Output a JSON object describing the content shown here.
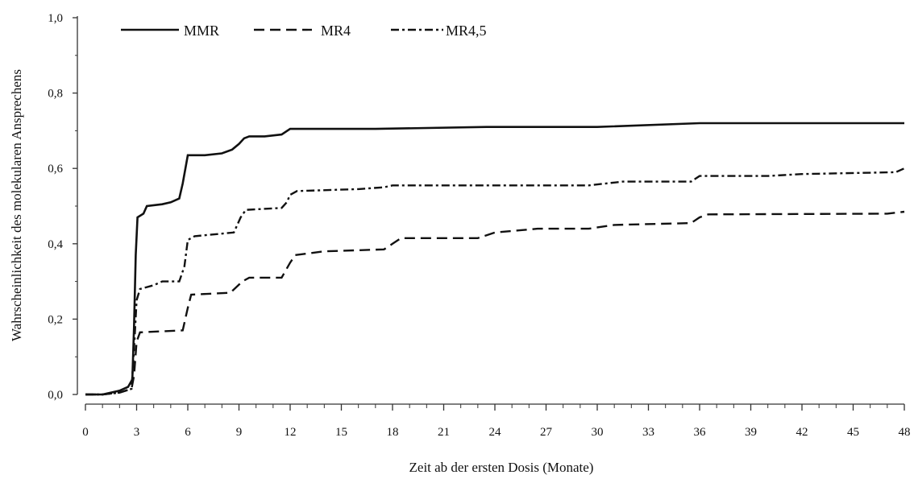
{
  "chart_data": {
    "type": "line",
    "xlabel": "Zeit ab der ersten Dosis (Monate)",
    "ylabel": "Wahrscheinlichkeit  des molekularen Ansprechens",
    "xlim": [
      0,
      48
    ],
    "ylim": [
      0,
      1.0
    ],
    "x_ticks": [
      0,
      3,
      6,
      9,
      12,
      15,
      18,
      21,
      24,
      27,
      30,
      33,
      36,
      39,
      42,
      45,
      48
    ],
    "x_tick_labels": [
      "0",
      "3",
      "6",
      "9",
      "12",
      "15",
      "18",
      "21",
      "24",
      "27",
      "30",
      "33",
      "36",
      "39",
      "42",
      "45",
      "48"
    ],
    "y_ticks": [
      0,
      0.2,
      0.4,
      0.6,
      0.8,
      1.0
    ],
    "y_tick_labels": [
      "0,0",
      "0,2",
      "0,4",
      "0,6",
      "0,8",
      "1,0"
    ],
    "grid": false,
    "legend_position": "top-left",
    "series": [
      {
        "name": "MMR",
        "style": "solid",
        "color": "#111111",
        "points": [
          [
            0,
            0
          ],
          [
            1,
            0
          ],
          [
            1.5,
            0.005
          ],
          [
            2.0,
            0.01
          ],
          [
            2.5,
            0.02
          ],
          [
            2.75,
            0.04
          ],
          [
            2.85,
            0.18
          ],
          [
            2.95,
            0.37
          ],
          [
            3.05,
            0.47
          ],
          [
            3.4,
            0.48
          ],
          [
            3.6,
            0.5
          ],
          [
            4.5,
            0.505
          ],
          [
            5.0,
            0.51
          ],
          [
            5.5,
            0.52
          ],
          [
            5.7,
            0.56
          ],
          [
            5.9,
            0.61
          ],
          [
            6.0,
            0.635
          ],
          [
            7.0,
            0.635
          ],
          [
            8.0,
            0.64
          ],
          [
            8.6,
            0.65
          ],
          [
            9.0,
            0.665
          ],
          [
            9.3,
            0.68
          ],
          [
            9.6,
            0.685
          ],
          [
            10.5,
            0.685
          ],
          [
            11.5,
            0.69
          ],
          [
            12.0,
            0.705
          ],
          [
            17.0,
            0.705
          ],
          [
            23.5,
            0.71
          ],
          [
            30.0,
            0.71
          ],
          [
            36.0,
            0.72
          ],
          [
            48.0,
            0.72
          ]
        ]
      },
      {
        "name": "MR4",
        "style": "dashed",
        "color": "#111111",
        "points": [
          [
            0,
            0
          ],
          [
            1,
            0
          ],
          [
            2,
            0.005
          ],
          [
            2.7,
            0.015
          ],
          [
            2.85,
            0.05
          ],
          [
            3.0,
            0.14
          ],
          [
            3.2,
            0.165
          ],
          [
            5.7,
            0.17
          ],
          [
            6.0,
            0.23
          ],
          [
            6.2,
            0.265
          ],
          [
            8.5,
            0.27
          ],
          [
            9.2,
            0.3
          ],
          [
            9.6,
            0.31
          ],
          [
            11.5,
            0.31
          ],
          [
            12.0,
            0.35
          ],
          [
            12.3,
            0.37
          ],
          [
            14.0,
            0.38
          ],
          [
            17.5,
            0.385
          ],
          [
            18.0,
            0.4
          ],
          [
            18.5,
            0.415
          ],
          [
            23.0,
            0.415
          ],
          [
            24.0,
            0.43
          ],
          [
            26.5,
            0.44
          ],
          [
            29.5,
            0.44
          ],
          [
            31.0,
            0.45
          ],
          [
            35.5,
            0.455
          ],
          [
            36.0,
            0.47
          ],
          [
            36.5,
            0.478
          ],
          [
            47.0,
            0.48
          ],
          [
            48.0,
            0.485
          ]
        ]
      },
      {
        "name": "MR4,5",
        "style": "dash-dot",
        "color": "#111111",
        "points": [
          [
            0,
            0
          ],
          [
            1,
            0
          ],
          [
            2,
            0.005
          ],
          [
            2.7,
            0.015
          ],
          [
            2.85,
            0.12
          ],
          [
            3.0,
            0.25
          ],
          [
            3.2,
            0.28
          ],
          [
            4.0,
            0.29
          ],
          [
            4.5,
            0.3
          ],
          [
            5.5,
            0.3
          ],
          [
            5.8,
            0.34
          ],
          [
            6.0,
            0.41
          ],
          [
            6.4,
            0.42
          ],
          [
            8.7,
            0.43
          ],
          [
            9.1,
            0.47
          ],
          [
            9.4,
            0.49
          ],
          [
            11.5,
            0.495
          ],
          [
            11.8,
            0.51
          ],
          [
            12.0,
            0.53
          ],
          [
            12.4,
            0.54
          ],
          [
            16.0,
            0.545
          ],
          [
            17.5,
            0.55
          ],
          [
            18.0,
            0.555
          ],
          [
            29.5,
            0.555
          ],
          [
            30.5,
            0.56
          ],
          [
            31.5,
            0.565
          ],
          [
            35.5,
            0.565
          ],
          [
            36.0,
            0.58
          ],
          [
            40.0,
            0.58
          ],
          [
            42.0,
            0.585
          ],
          [
            47.5,
            0.59
          ],
          [
            48.0,
            0.6
          ]
        ]
      }
    ]
  }
}
